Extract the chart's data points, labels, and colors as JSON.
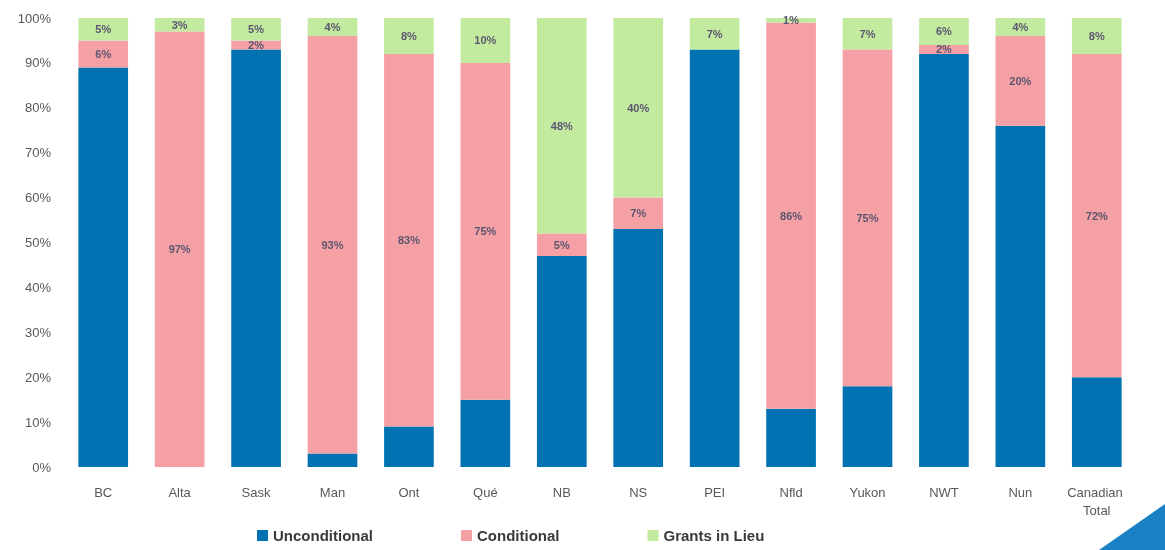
{
  "chart_data": {
    "type": "bar",
    "stacked": true,
    "categories": [
      "BC",
      "Alta",
      "Sask",
      "Man",
      "Ont",
      "Qué",
      "NB",
      "NS",
      "PEI",
      "Nfld",
      "Yukon",
      "NWT",
      "Nun",
      "Canadian Total"
    ],
    "series": [
      {
        "name": "Unconditional",
        "color": "#0072b2",
        "values": [
          89,
          0,
          93,
          3,
          9,
          15,
          47,
          53,
          93,
          13,
          18,
          92,
          76,
          20
        ]
      },
      {
        "name": "Conditional",
        "color": "#f4a0a4",
        "values": [
          6,
          97,
          2,
          93,
          83,
          75,
          5,
          7,
          0,
          86,
          75,
          2,
          20,
          72
        ],
        "value_labels": [
          "6%",
          "97%",
          "2%",
          "93%",
          "83%",
          "75%",
          "5%",
          "7%",
          null,
          "86%",
          "75%",
          "2%",
          "20%",
          "72%"
        ]
      },
      {
        "name": "Grants in Lieu",
        "color": "#c3eba0",
        "values": [
          5,
          3,
          5,
          4,
          8,
          10,
          48,
          40,
          7,
          1,
          7,
          6,
          4,
          8
        ],
        "value_labels": [
          "5%",
          "3%",
          "5%",
          "4%",
          "8%",
          "10%",
          "48%",
          "40%",
          "7%",
          "1%",
          "7%",
          "6%",
          "4%",
          "8%"
        ]
      }
    ],
    "ylim": [
      0,
      100
    ],
    "yticks": [
      {
        "value": 0,
        "label": "0%"
      },
      {
        "value": 10,
        "label": "10%"
      },
      {
        "value": 20,
        "label": "20%"
      },
      {
        "value": 30,
        "label": "30%"
      },
      {
        "value": 40,
        "label": "40%"
      },
      {
        "value": 50,
        "label": "50%"
      },
      {
        "value": 60,
        "label": "60%"
      },
      {
        "value": 70,
        "label": "70%"
      },
      {
        "value": 80,
        "label": "80%"
      },
      {
        "value": 90,
        "label": "90%"
      },
      {
        "value": 100,
        "label": "100%"
      }
    ],
    "legend": "bottom"
  }
}
